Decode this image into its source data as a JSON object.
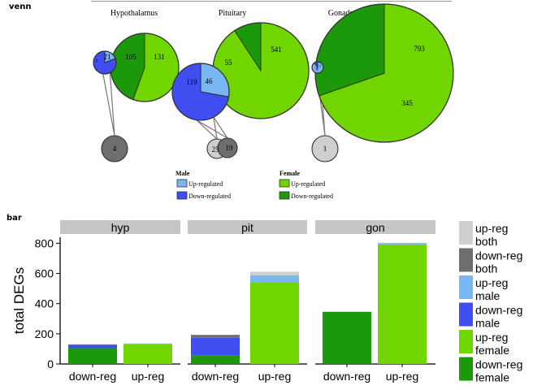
{
  "panels": {
    "top_tag": "venn",
    "bottom_tag": "bar"
  },
  "colors": {
    "up_male": "#78b7f2",
    "down_male": "#3f4ef0",
    "up_female": "#71d600",
    "down_female": "#1c980b",
    "up_both": "#cfcfcf",
    "down_both": "#6e6e6e"
  },
  "venn": {
    "regions": [
      {
        "title": "Hypothalamus",
        "male_up": 5,
        "male_down": 21,
        "female_down": 105,
        "female_up": 131,
        "both": 4,
        "both_kind": "down"
      },
      {
        "title": "Pituitary",
        "male_up": 46,
        "male_down": 119,
        "female_down": 55,
        "female_up": 541,
        "both_down": 19,
        "both_up": 25
      },
      {
        "title": "Gonads",
        "male_up": 9,
        "male_down": 1,
        "female_down": 345,
        "female_up": 793,
        "both": 1,
        "both_kind": "up"
      }
    ],
    "legend": {
      "male_title": "Male",
      "male_up": "Up-regulated",
      "male_down": "Down-regulated",
      "female_title": "Female",
      "female_up": "Up-regulated",
      "female_down": "Down-regulated"
    }
  },
  "chart_data": {
    "type": "bar",
    "stacked": true,
    "facets": [
      "hyp",
      "pit",
      "gon"
    ],
    "categories": [
      "down-reg",
      "up-reg"
    ],
    "ylabel": "total DEGs",
    "yticks": [
      0,
      200,
      400,
      600,
      800
    ],
    "ylim": [
      0,
      840
    ],
    "series": [
      {
        "name": "down-reg\nfemale",
        "key": "down_female",
        "values": {
          "hyp": [
            105,
            0
          ],
          "pit": [
            55,
            0
          ],
          "gon": [
            345,
            0
          ]
        }
      },
      {
        "name": "up-reg\nfemale",
        "key": "up_female",
        "values": {
          "hyp": [
            0,
            131
          ],
          "pit": [
            0,
            541
          ],
          "gon": [
            0,
            793
          ]
        }
      },
      {
        "name": "down-reg\nmale",
        "key": "down_male",
        "values": {
          "hyp": [
            21,
            0
          ],
          "pit": [
            119,
            0
          ],
          "gon": [
            1,
            0
          ]
        }
      },
      {
        "name": "up-reg\nmale",
        "key": "up_male",
        "values": {
          "hyp": [
            0,
            5
          ],
          "pit": [
            0,
            46
          ],
          "gon": [
            0,
            9
          ]
        }
      },
      {
        "name": "down-reg\nboth",
        "key": "down_both",
        "values": {
          "hyp": [
            4,
            0
          ],
          "pit": [
            19,
            0
          ],
          "gon": [
            0,
            0
          ]
        }
      },
      {
        "name": "up-reg\nboth",
        "key": "up_both",
        "values": {
          "hyp": [
            0,
            0
          ],
          "pit": [
            0,
            25
          ],
          "gon": [
            0,
            1
          ]
        }
      }
    ],
    "legend_order": [
      "up_both",
      "down_both",
      "up_male",
      "down_male",
      "up_female",
      "down_female"
    ],
    "legend_position": "right"
  }
}
